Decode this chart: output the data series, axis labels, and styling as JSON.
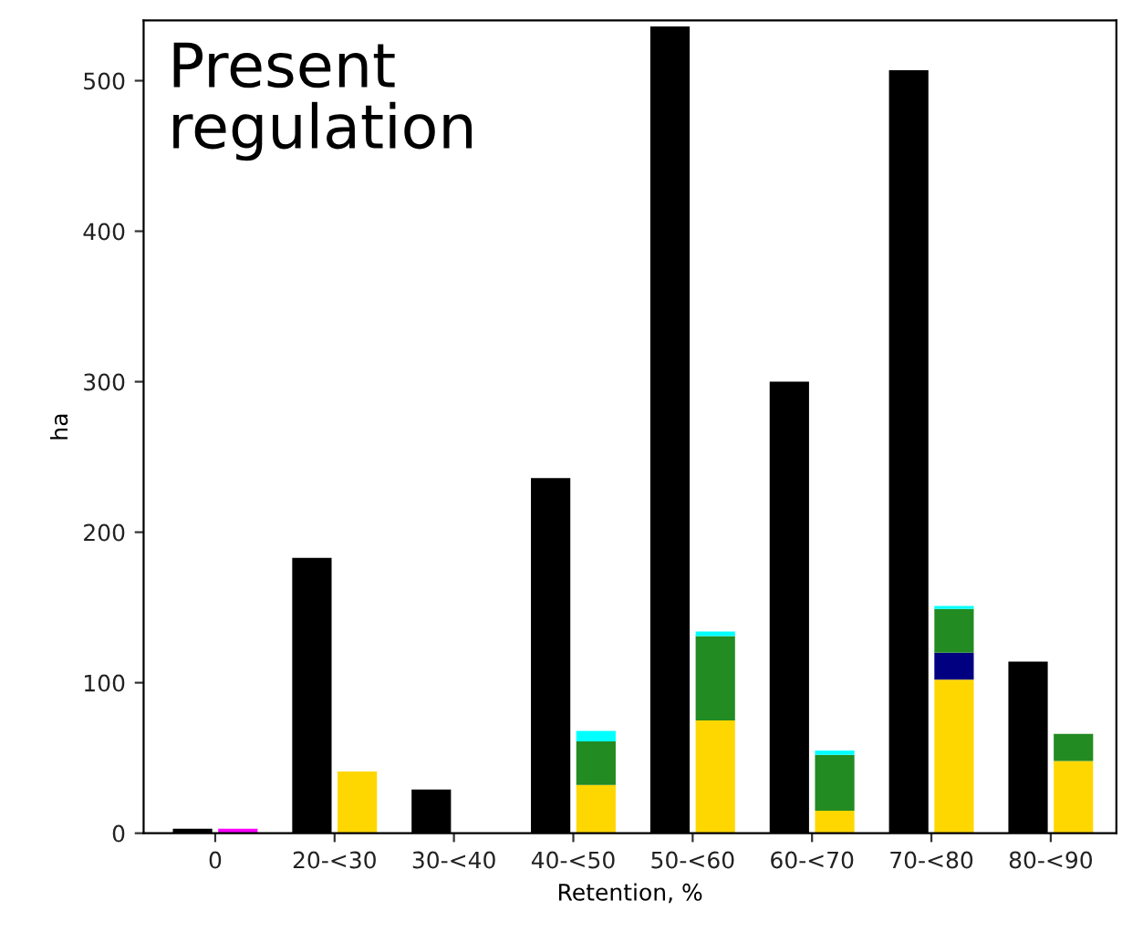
{
  "chart_data": {
    "type": "bar",
    "title": "Present\nregulation",
    "xlabel": "Retention, %",
    "ylabel": "ha",
    "categories": [
      "0",
      "20-<30",
      "30-<40",
      "40-<50",
      "50-<60",
      "60-<70",
      "70-<80",
      "80-<90"
    ],
    "series": [
      {
        "color": "#000000",
        "values": [
          3,
          183,
          29,
          236,
          536,
          300,
          507,
          114
        ]
      },
      {
        "color": "#ffd700",
        "values": [
          null,
          41,
          null,
          32,
          75,
          15,
          102,
          48
        ],
        "base": [
          null,
          0,
          null,
          0,
          0,
          0,
          0,
          0
        ]
      },
      {
        "color": "#000080",
        "values": [
          null,
          null,
          null,
          null,
          null,
          null,
          18,
          null
        ],
        "base": [
          null,
          null,
          null,
          null,
          null,
          null,
          102,
          null
        ]
      },
      {
        "color": "#228b22",
        "values": [
          null,
          null,
          null,
          29,
          56,
          37,
          29,
          18
        ],
        "base": [
          null,
          null,
          null,
          32,
          75,
          15,
          120,
          48
        ]
      },
      {
        "color": "#00ffff",
        "values": [
          null,
          null,
          null,
          7,
          3,
          3,
          2,
          null
        ],
        "base": [
          null,
          null,
          null,
          61,
          131,
          52,
          149,
          null
        ]
      },
      {
        "color": "#ff00ff",
        "values": [
          3,
          null,
          null,
          null,
          null,
          null,
          null,
          null
        ],
        "base": [
          0,
          null,
          null,
          null,
          null,
          null,
          null,
          null
        ]
      }
    ],
    "ylim": [
      0,
      540
    ],
    "yticks": [
      0,
      100,
      200,
      300,
      400,
      500
    ],
    "grid": false,
    "legend": false
  }
}
